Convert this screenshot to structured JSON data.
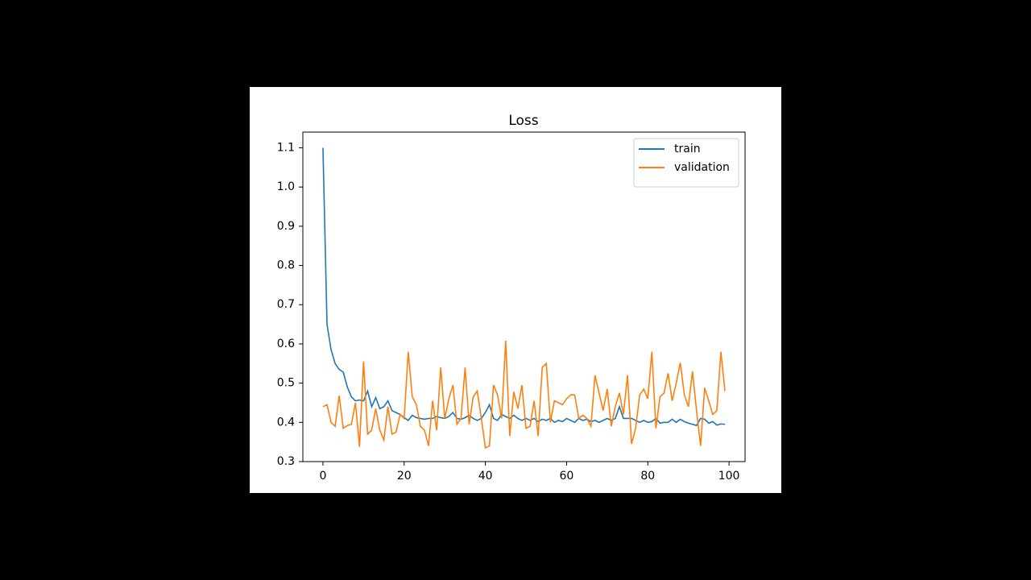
{
  "chart_data": {
    "type": "line",
    "title": "Loss",
    "x": [
      0,
      1,
      2,
      3,
      4,
      5,
      6,
      7,
      8,
      9,
      10,
      11,
      12,
      13,
      14,
      15,
      16,
      17,
      18,
      19,
      20,
      21,
      22,
      23,
      24,
      25,
      26,
      27,
      28,
      29,
      30,
      31,
      32,
      33,
      34,
      35,
      36,
      37,
      38,
      39,
      40,
      41,
      42,
      43,
      44,
      45,
      46,
      47,
      48,
      49,
      50,
      51,
      52,
      53,
      54,
      55,
      56,
      57,
      58,
      59,
      60,
      61,
      62,
      63,
      64,
      65,
      66,
      67,
      68,
      69,
      70,
      71,
      72,
      73,
      74,
      75,
      76,
      77,
      78,
      79,
      80,
      81,
      82,
      83,
      84,
      85,
      86,
      87,
      88,
      89,
      90,
      91,
      92,
      93,
      94,
      95,
      96,
      97,
      98,
      99
    ],
    "series": [
      {
        "name": "train",
        "color": "#1f77b4",
        "values": [
          1.1,
          0.65,
          0.585,
          0.55,
          0.535,
          0.528,
          0.49,
          0.465,
          0.455,
          0.457,
          0.455,
          0.48,
          0.44,
          0.463,
          0.435,
          0.44,
          0.455,
          0.43,
          0.425,
          0.42,
          0.412,
          0.405,
          0.418,
          0.412,
          0.41,
          0.408,
          0.41,
          0.41,
          0.415,
          0.412,
          0.41,
          0.415,
          0.425,
          0.41,
          0.408,
          0.412,
          0.418,
          0.41,
          0.405,
          0.41,
          0.425,
          0.445,
          0.41,
          0.405,
          0.42,
          0.415,
          0.41,
          0.418,
          0.41,
          0.405,
          0.41,
          0.405,
          0.41,
          0.402,
          0.408,
          0.405,
          0.41,
          0.4,
          0.405,
          0.402,
          0.41,
          0.405,
          0.4,
          0.41,
          0.405,
          0.408,
          0.402,
          0.405,
          0.4,
          0.405,
          0.41,
          0.405,
          0.41,
          0.44,
          0.41,
          0.41,
          0.41,
          0.405,
          0.4,
          0.405,
          0.4,
          0.402,
          0.41,
          0.398,
          0.4,
          0.4,
          0.408,
          0.4,
          0.408,
          0.402,
          0.398,
          0.395,
          0.392,
          0.41,
          0.408,
          0.398,
          0.402,
          0.393,
          0.396,
          0.395
        ]
      },
      {
        "name": "validation",
        "color": "#ff7f0e",
        "values": [
          0.44,
          0.445,
          0.4,
          0.39,
          0.468,
          0.385,
          0.392,
          0.395,
          0.45,
          0.338,
          0.555,
          0.37,
          0.38,
          0.435,
          0.38,
          0.355,
          0.44,
          0.37,
          0.375,
          0.42,
          0.41,
          0.58,
          0.465,
          0.445,
          0.39,
          0.38,
          0.34,
          0.455,
          0.38,
          0.54,
          0.41,
          0.46,
          0.495,
          0.395,
          0.41,
          0.54,
          0.395,
          0.465,
          0.48,
          0.41,
          0.335,
          0.34,
          0.495,
          0.47,
          0.41,
          0.608,
          0.365,
          0.478,
          0.435,
          0.495,
          0.385,
          0.39,
          0.455,
          0.365,
          0.54,
          0.55,
          0.4,
          0.455,
          0.45,
          0.445,
          0.46,
          0.47,
          0.47,
          0.41,
          0.418,
          0.41,
          0.39,
          0.52,
          0.475,
          0.43,
          0.485,
          0.39,
          0.44,
          0.475,
          0.42,
          0.52,
          0.345,
          0.385,
          0.47,
          0.485,
          0.46,
          0.58,
          0.385,
          0.465,
          0.475,
          0.525,
          0.455,
          0.5,
          0.552,
          0.47,
          0.44,
          0.53,
          0.43,
          0.34,
          0.488,
          0.455,
          0.42,
          0.43,
          0.58,
          0.48
        ]
      }
    ],
    "xlim": [
      -4.95,
      103.95
    ],
    "xticks": [
      0,
      20,
      40,
      60,
      80,
      100
    ],
    "ylim": [
      0.3,
      1.14
    ],
    "yticks": [
      0.3,
      0.4,
      0.5,
      0.6,
      0.7,
      0.8,
      0.9,
      {
        "value": 1,
        "label": "1.0"
      },
      1.1
    ],
    "legend": "upper right"
  }
}
